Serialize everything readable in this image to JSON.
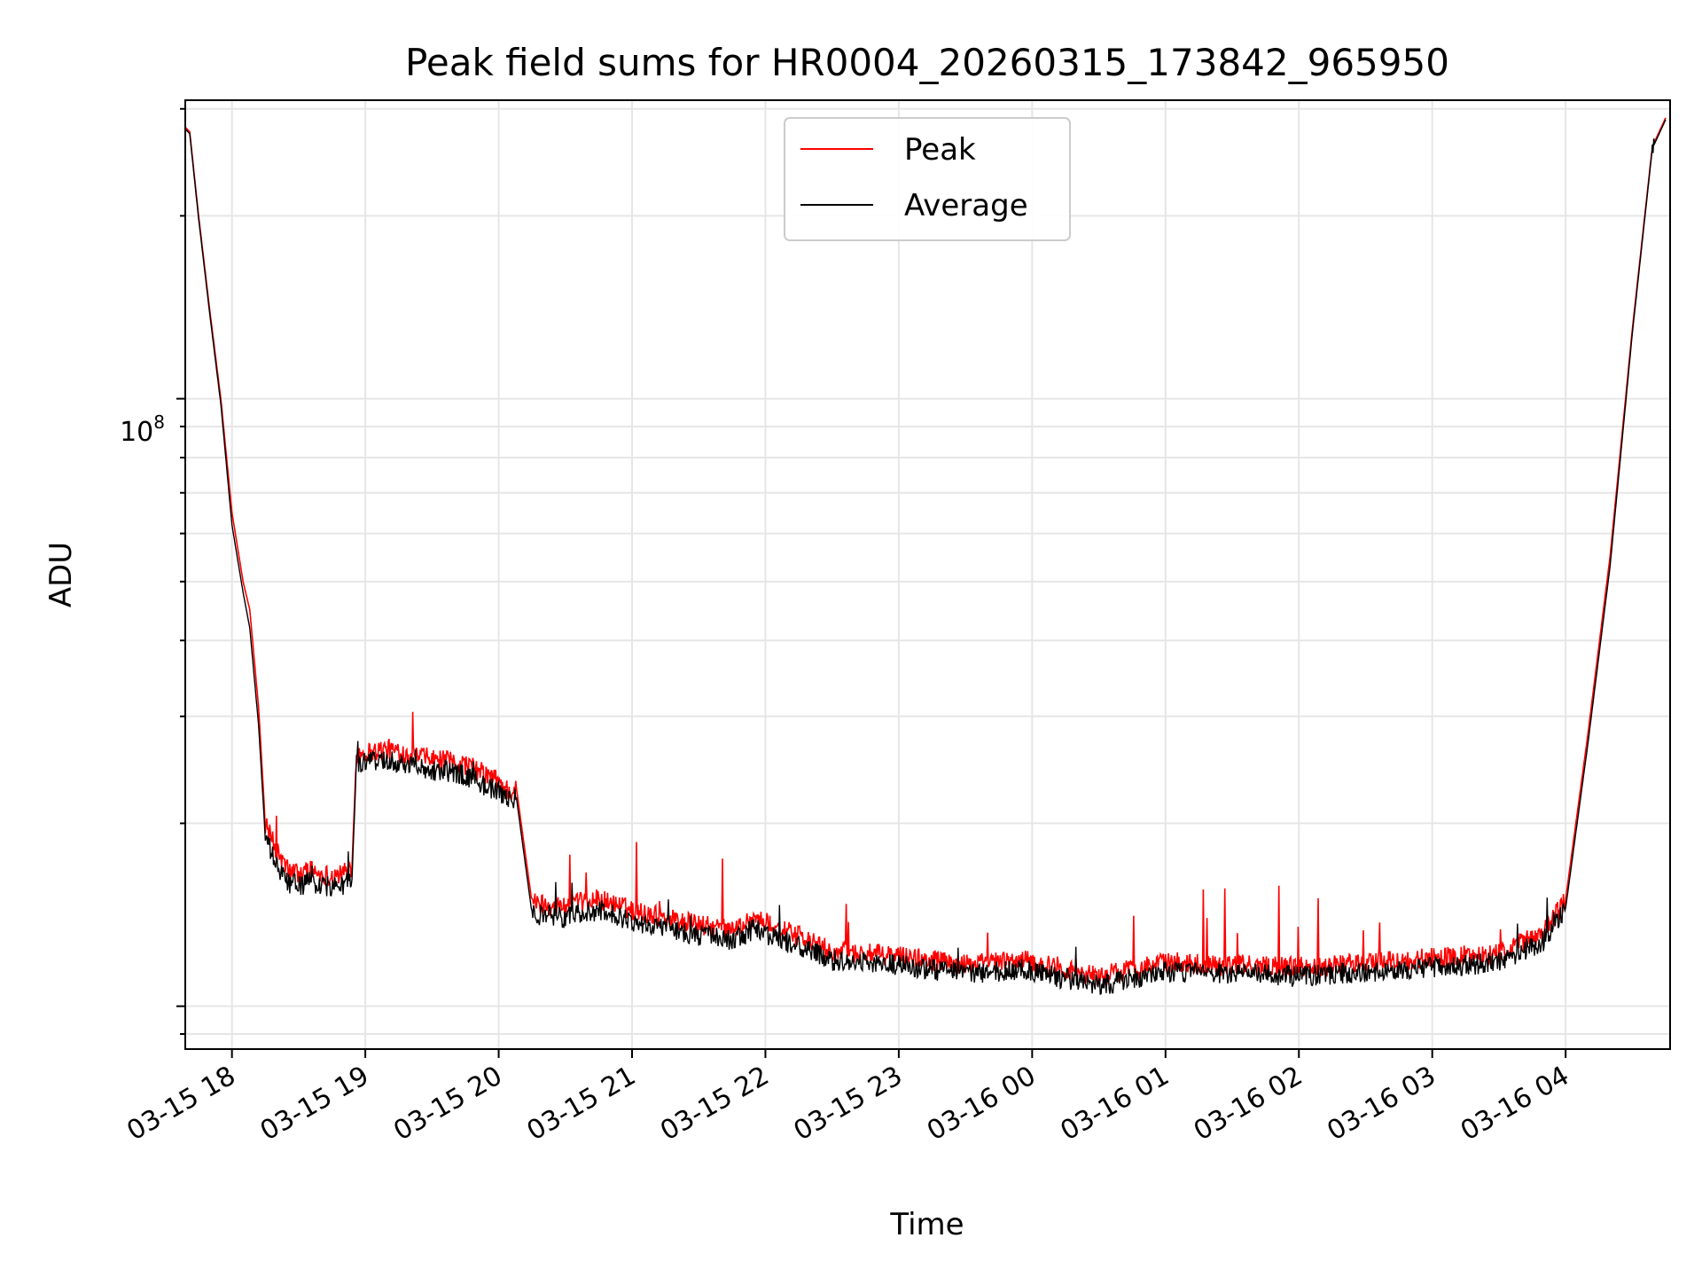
{
  "chart_data": {
    "type": "line",
    "title": "Peak field sums for HR0004_20260315_173842_965950",
    "xlabel": "Time",
    "ylabel": "ADU",
    "yscale": "log",
    "ylim": [
      8500000,
      310000000
    ],
    "y_major_tick_label": {
      "base": "10",
      "exp": "8"
    },
    "x_range": [
      "03-15 17:39",
      "03-16 04:47"
    ],
    "x_tick_labels": [
      "03-15 18",
      "03-15 19",
      "03-15 20",
      "03-15 21",
      "03-15 22",
      "03-15 23",
      "03-16 00",
      "03-16 01",
      "03-16 02",
      "03-16 03",
      "03-16 04"
    ],
    "grid": true,
    "legend": "top-center",
    "colors": {
      "Peak": "#ff0000",
      "Average": "#000000"
    },
    "series": [
      {
        "name": "Peak",
        "x": [
          "17:39",
          "17:41",
          "17:45",
          "17:50",
          "17:55",
          "18:00",
          "18:05",
          "18:08",
          "18:12",
          "18:15",
          "18:20",
          "18:25",
          "18:30",
          "18:35",
          "18:40",
          "18:45",
          "18:50",
          "18:54",
          "18:56",
          "19:10",
          "19:30",
          "19:45",
          "20:00",
          "20:05",
          "20:08",
          "20:15",
          "20:30",
          "20:45",
          "21:00",
          "21:30",
          "21:45",
          "21:55",
          "22:30",
          "23:00",
          "23:30",
          "23:55",
          "00:30",
          "01:00",
          "01:30",
          "02:00",
          "02:30",
          "03:00",
          "03:30",
          "03:40",
          "03:50",
          "04:00",
          "04:10",
          "04:20",
          "04:30",
          "04:39",
          "04:45"
        ],
        "y": [
          280000000,
          275000000,
          200000000,
          140000000,
          100000000,
          65000000,
          50000000,
          45000000,
          31000000,
          20000000,
          18000000,
          16800000,
          16500000,
          16800000,
          16500000,
          16400000,
          16500000,
          17000000,
          26000000,
          26500000,
          25500000,
          25000000,
          23500000,
          22500000,
          22800000,
          14800000,
          14600000,
          15000000,
          14400000,
          13600000,
          13300000,
          14000000,
          12300000,
          12100000,
          11700000,
          11900000,
          11200000,
          11800000,
          11700000,
          11600000,
          11800000,
          12000000,
          12200000,
          12700000,
          13300000,
          15000000,
          28000000,
          55000000,
          130000000,
          260000000,
          290000000
        ]
      },
      {
        "name": "Average",
        "x": [
          "17:39",
          "17:41",
          "17:45",
          "17:50",
          "17:55",
          "18:00",
          "18:05",
          "18:08",
          "18:12",
          "18:15",
          "18:20",
          "18:25",
          "18:30",
          "18:35",
          "18:40",
          "18:45",
          "18:50",
          "18:54",
          "18:56",
          "19:10",
          "19:30",
          "19:45",
          "20:00",
          "20:05",
          "20:08",
          "20:15",
          "20:30",
          "20:45",
          "21:00",
          "21:30",
          "21:45",
          "21:55",
          "22:30",
          "23:00",
          "23:30",
          "23:55",
          "00:30",
          "01:00",
          "01:30",
          "02:00",
          "02:30",
          "03:00",
          "03:30",
          "03:40",
          "03:50",
          "04:00",
          "04:10",
          "04:20",
          "04:30",
          "04:39",
          "04:45"
        ],
        "y": [
          278000000,
          273000000,
          198000000,
          138000000,
          98000000,
          62000000,
          48000000,
          42000000,
          29000000,
          19000000,
          17000000,
          16000000,
          15800000,
          16000000,
          15800000,
          15700000,
          15800000,
          16200000,
          25000000,
          25500000,
          24500000,
          24000000,
          22500000,
          21800000,
          22000000,
          14200000,
          14000000,
          14400000,
          13800000,
          13100000,
          12800000,
          13400000,
          11900000,
          11700000,
          11300000,
          11500000,
          10800000,
          11400000,
          11300000,
          11200000,
          11400000,
          11600000,
          11800000,
          12300000,
          12800000,
          14500000,
          27000000,
          53000000,
          128000000,
          258000000,
          288000000
        ]
      }
    ]
  }
}
